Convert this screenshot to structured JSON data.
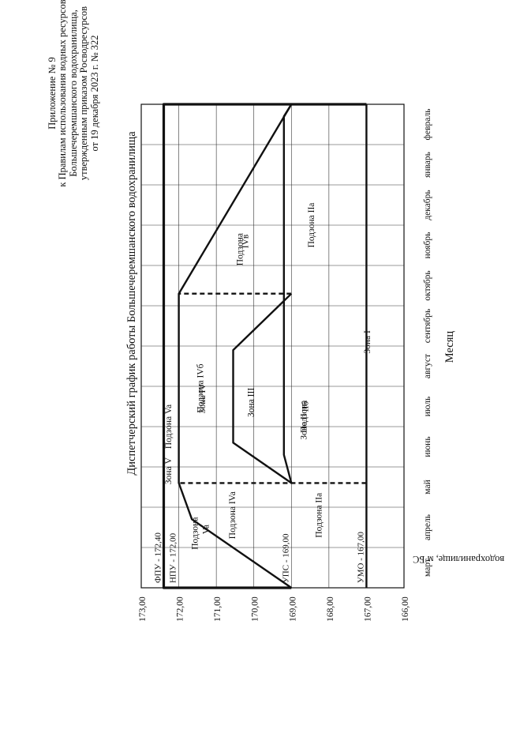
{
  "header": {
    "line1": "Приложение № 9",
    "line2": "к Правилам использования водных ресурсов",
    "line3": "Большечеремшанского водохранилища,",
    "line4": "утвержденным приказом Росводресурсов",
    "line5": "от 19 декабря 2023 г. № 322"
  },
  "chart_data": {
    "type": "line",
    "title": "Диспетчерский график работы Большечеремшанского водохранилища",
    "xlabel": "Месяц",
    "ylabel": "Уровень воды в водохранилище, м БС",
    "categories": [
      "март",
      "апрель",
      "май",
      "июнь",
      "июль",
      "август",
      "сентябрь",
      "октябрь",
      "ноябрь",
      "декабрь",
      "январь",
      "февраль"
    ],
    "ylim": [
      166.0,
      173.0
    ],
    "yticks": [
      "166,00",
      "167,00",
      "168,00",
      "169,00",
      "170,00",
      "171,00",
      "172,00",
      "173,00"
    ],
    "grid": true,
    "x_domain": [
      0,
      12
    ],
    "levels": [
      {
        "label": "ФПУ - 172,40",
        "y": 172.4
      },
      {
        "label": "НПУ - 172,00",
        "y": 172.0
      },
      {
        "label": "УПС - 169,00",
        "y": 169.0
      },
      {
        "label": "УМО - 167,00",
        "y": 167.0
      }
    ],
    "series": [
      {
        "values": [
          [
            0,
            169.0
          ],
          [
            0,
            172.4
          ],
          [
            12,
            172.4
          ],
          [
            12,
            167.0
          ]
        ]
      },
      {
        "values": [
          [
            0,
            167.0
          ],
          [
            12,
            167.0
          ]
        ]
      },
      {
        "values": [
          [
            0,
            169.0
          ],
          [
            1.7,
            171.65
          ],
          [
            2.6,
            172.0
          ],
          [
            7.3,
            172.0
          ],
          [
            12,
            169.0
          ]
        ]
      },
      {
        "values": [
          [
            2.6,
            169.0
          ],
          [
            3.3,
            169.2
          ],
          [
            7.3,
            169.2
          ],
          [
            11.7,
            169.2
          ],
          [
            12,
            169.0
          ]
        ]
      },
      {
        "values": [
          [
            2.6,
            169.0
          ],
          [
            3.6,
            170.55
          ],
          [
            5.9,
            170.55
          ],
          [
            7.3,
            169.0
          ]
        ]
      }
    ],
    "dashed": [
      {
        "values": [
          [
            2.6,
            167.0
          ],
          [
            2.6,
            172.0
          ]
        ]
      },
      {
        "values": [
          [
            7.3,
            169.0
          ],
          [
            7.3,
            172.0
          ]
        ]
      }
    ],
    "zones": [
      {
        "text": "Зона V",
        "x": 2.9,
        "y": 172.2
      },
      {
        "text": "Подзона Va",
        "x": 4.0,
        "y": 172.2
      },
      {
        "text": "Подзона",
        "x": 1.35,
        "y": 171.5
      },
      {
        "text": "Va",
        "x": 1.45,
        "y": 171.2
      },
      {
        "text": "Подзона IVa",
        "x": 1.8,
        "y": 170.5
      },
      {
        "text": "Зона IV",
        "x": 4.7,
        "y": 171.3
      },
      {
        "text": "Подзона IVб",
        "x": 4.95,
        "y": 171.35
      },
      {
        "text": "Зона III",
        "x": 4.6,
        "y": 170.0
      },
      {
        "text": "Подзона",
        "x": 8.4,
        "y": 170.3
      },
      {
        "text": "IVв",
        "x": 8.6,
        "y": 170.15
      },
      {
        "text": "Подзона IIa",
        "x": 1.8,
        "y": 168.2
      },
      {
        "text": "Зона II",
        "x": 4.0,
        "y": 168.6
      },
      {
        "text": "Подзона",
        "x": 4.25,
        "y": 168.6
      },
      {
        "text": "IIб",
        "x": 4.5,
        "y": 168.55
      },
      {
        "text": "Подзона IIa",
        "x": 9.0,
        "y": 168.4
      },
      {
        "text": "Зона I",
        "x": 6.1,
        "y": 166.9
      }
    ]
  }
}
